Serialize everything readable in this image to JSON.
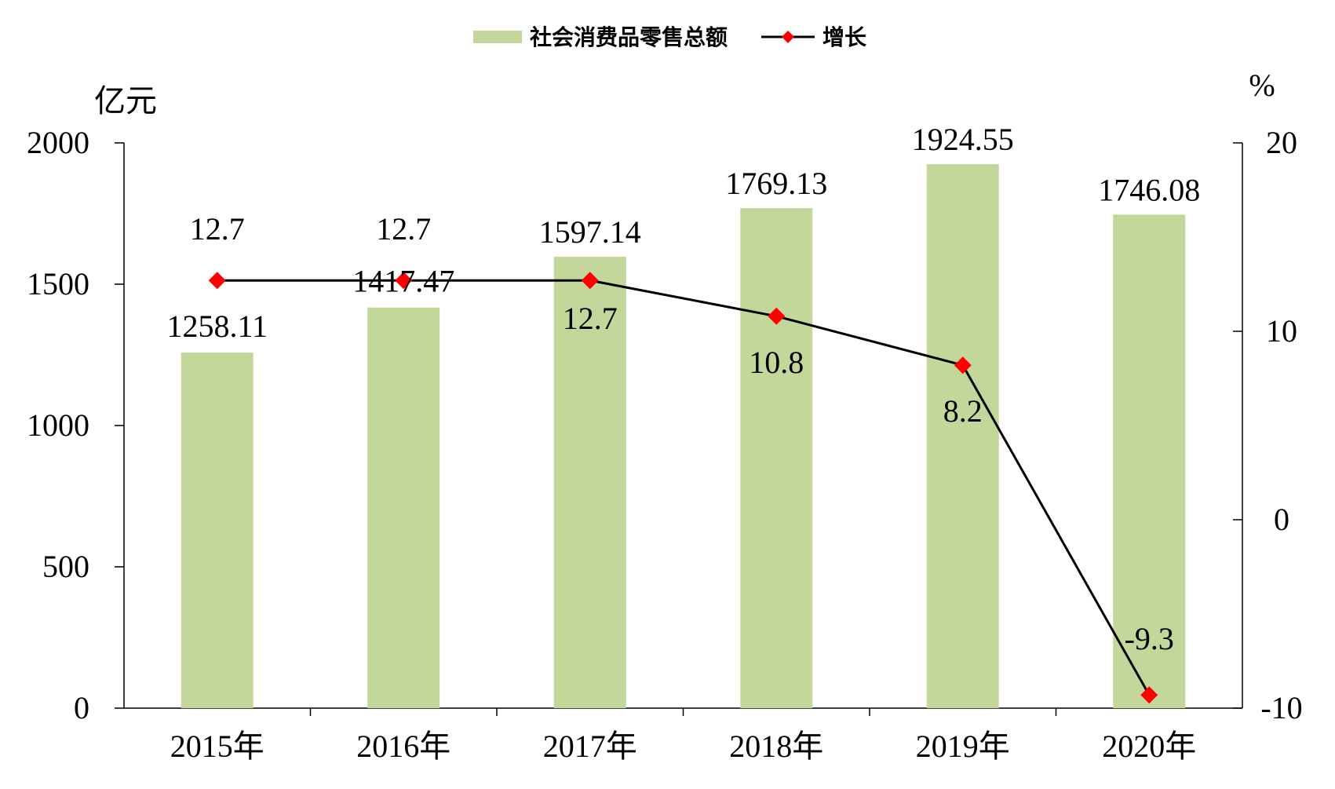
{
  "chart_data": {
    "type": "bar",
    "categories": [
      "2015年",
      "2016年",
      "2017年",
      "2018年",
      "2019年",
      "2020年"
    ],
    "series": [
      {
        "name": "社会消费品零售总额",
        "type": "bar",
        "axis": "left",
        "values": [
          1258.11,
          1417.47,
          1597.14,
          1769.13,
          1924.55,
          1746.08
        ],
        "labels": [
          "1258.11",
          "1417.47",
          "1597.14",
          "1769.13",
          "1924.55",
          "1746.08"
        ],
        "color": "#c4d79b"
      },
      {
        "name": "增长",
        "type": "line",
        "axis": "right",
        "values": [
          12.7,
          12.7,
          12.7,
          10.8,
          8.2,
          -9.3
        ],
        "labels": [
          "12.7",
          "12.7",
          "12.7",
          "10.8",
          "8.2",
          "-9.3"
        ],
        "line_color": "#000000",
        "marker_color": "#ff0000",
        "marker": "diamond"
      }
    ],
    "left_axis": {
      "unit": "亿元",
      "ylim": [
        0,
        2000
      ],
      "ticks": [
        "0",
        "500",
        "1000",
        "1500",
        "2000"
      ]
    },
    "right_axis": {
      "unit": "%",
      "ylim": [
        -10,
        20
      ],
      "ticks": [
        "-10",
        "0",
        "10",
        "20"
      ]
    },
    "legend": {
      "position": "top-center"
    },
    "grid": false
  }
}
